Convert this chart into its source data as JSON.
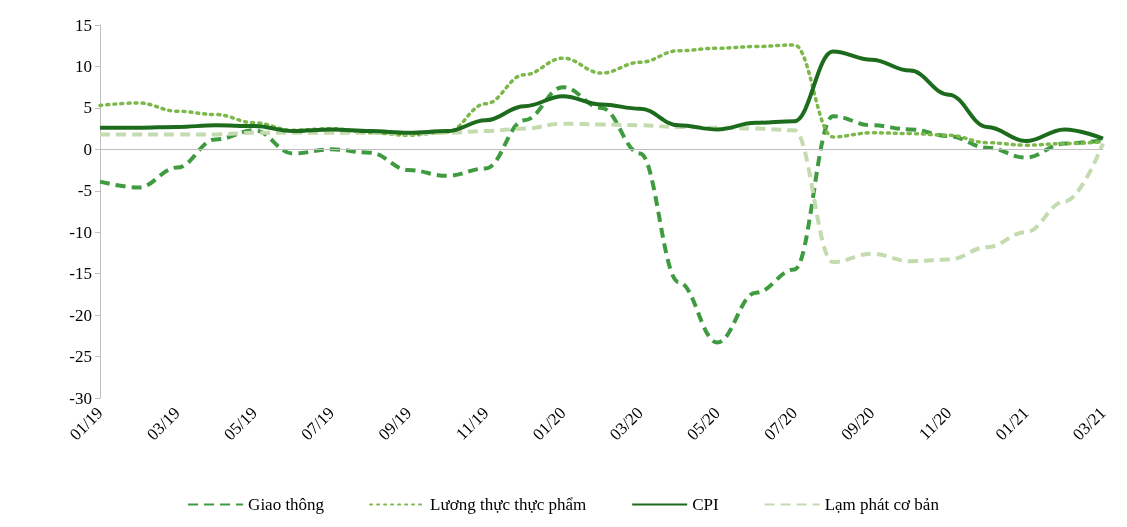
{
  "chart_data": {
    "type": "line",
    "categories": [
      "01/19",
      null,
      "03/19",
      null,
      "05/19",
      null,
      "07/19",
      null,
      "09/19",
      null,
      "11/19",
      null,
      "01/20",
      null,
      "03/20",
      null,
      "05/20",
      null,
      "07/20",
      null,
      "09/20",
      null,
      "11/20",
      null,
      "01/21",
      null,
      "03/21"
    ],
    "series": [
      {
        "name": "Giao thông",
        "color": "#3f9b3f",
        "line_style": "dashed",
        "values": [
          -3.9,
          -4.6,
          -2.2,
          1.2,
          2.3,
          -0.5,
          0.0,
          -0.4,
          -2.5,
          -3.2,
          -2.3,
          3.5,
          7.5,
          5.0,
          -0.5,
          -16,
          -23.3,
          -17.3,
          -14.5,
          4.0,
          2.9,
          2.4,
          1.6,
          0.2,
          -1.0,
          0.7,
          1.1
        ]
      },
      {
        "name": "Lương thực thực phẩm",
        "color": "#7cb84a",
        "line_style": "dotted",
        "values": [
          5.3,
          5.6,
          4.6,
          4.2,
          3.2,
          2.3,
          2.5,
          2.0,
          1.7,
          2.1,
          5.5,
          9.0,
          11.0,
          9.2,
          10.5,
          11.9,
          12.2,
          12.4,
          12.6,
          1.5,
          2.0,
          1.9,
          1.7,
          0.8,
          0.5,
          0.7,
          0.9
        ]
      },
      {
        "name": "CPI",
        "color": "#1d6b1d",
        "line_style": "solid",
        "values": [
          2.6,
          2.6,
          2.7,
          2.9,
          2.8,
          2.2,
          2.4,
          2.2,
          2.0,
          2.2,
          3.5,
          5.2,
          6.4,
          5.4,
          4.9,
          2.9,
          2.4,
          3.2,
          3.4,
          11.8,
          10.8,
          9.5,
          6.6,
          2.7,
          1.0,
          2.4,
          1.3
        ]
      },
      {
        "name": "Lạm phát cơ bản",
        "color": "#c4dbb0",
        "line_style": "dashed",
        "values": [
          1.8,
          1.8,
          1.8,
          1.8,
          2.0,
          2.0,
          2.0,
          2.0,
          1.9,
          2.0,
          2.2,
          2.5,
          3.1,
          3.0,
          2.9,
          2.7,
          2.6,
          2.5,
          2.3,
          -13.6,
          -12.6,
          -13.5,
          -13.3,
          -11.8,
          -10.0,
          -6.3,
          0.7
        ]
      }
    ],
    "ylim": [
      -30,
      15
    ],
    "yticks": [
      -30,
      -25,
      -20,
      -15,
      -10,
      -5,
      0,
      5,
      10,
      15
    ],
    "ref_lines": [
      {
        "axis": "y",
        "value": 0,
        "color": "#bfbfbf"
      }
    ],
    "grid": false,
    "legend": "bottom",
    "marker": "none"
  }
}
